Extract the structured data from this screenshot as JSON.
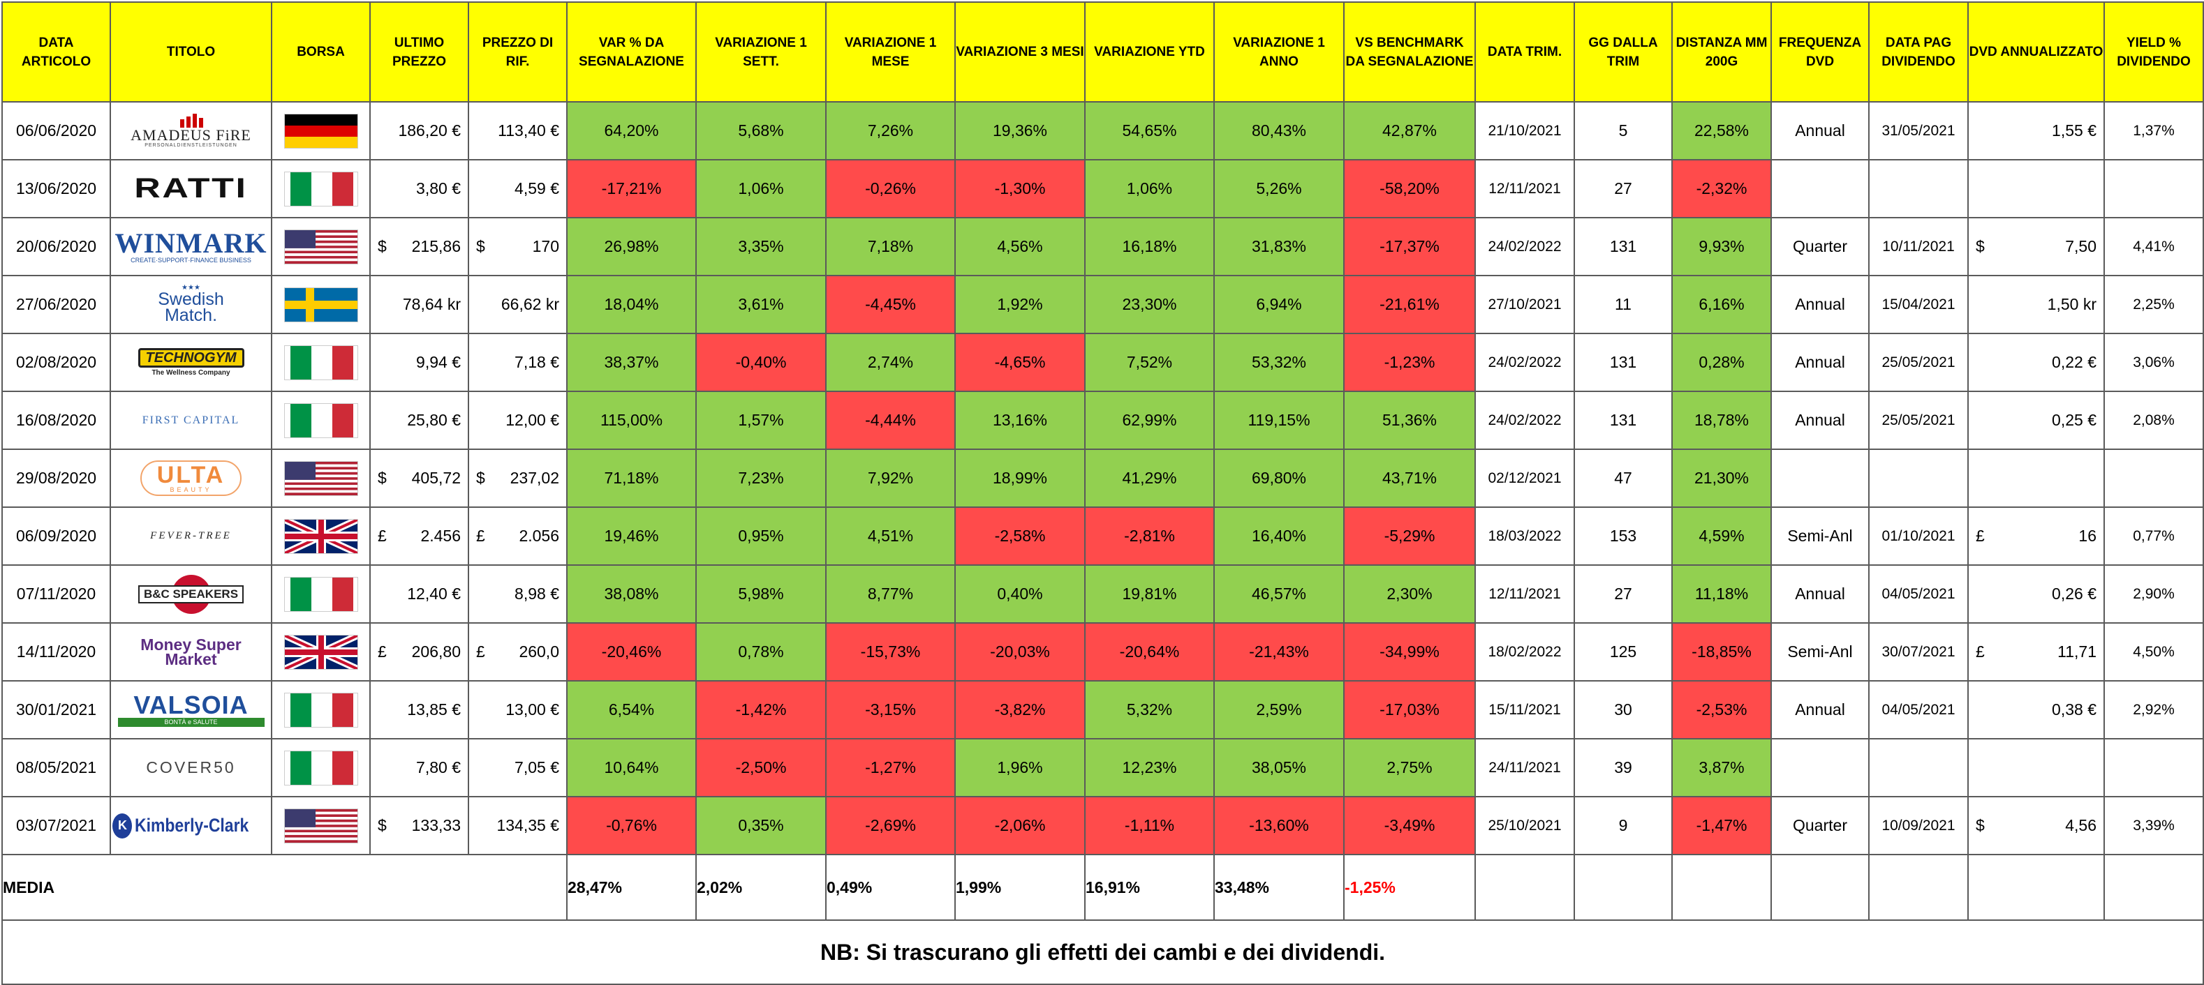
{
  "headers": {
    "data_articolo": "DATA ARTICOLO",
    "titolo": "TITOLO",
    "borsa": "BORSA",
    "ultimo_prezzo": "ULTIMO PREZZO",
    "prezzo_rif": "PREZZO DI RIF.",
    "var_segnalazione": "VAR % DA SEGNALAZIONE",
    "var_1_sett": "VARIAZIONE 1 SETT.",
    "var_1_mese": "VARIAZIONE 1 MESE",
    "var_3_mesi": "VARIAZIONE 3 MESI",
    "var_ytd": "VARIAZIONE YTD",
    "var_1_anno": "VARIAZIONE 1 ANNO",
    "vs_benchmark": "VS BENCHMARK DA SEGNALAZIONE",
    "data_trim": "DATA TRIM.",
    "gg_trim": "GG DALLA TRIM",
    "distanza_mm": "DISTANZA MM 200G",
    "frequenza_dvd": "FREQUENZA DVD",
    "data_pag_div": "DATA PAG DIVIDENDO",
    "dvd_annualizzato": "DVD ANNUALIZZATO",
    "yield_div": "YIELD % DIVIDENDO"
  },
  "colors": {
    "header": "#ffff00",
    "positive": "#92d050",
    "negative": "#ff4b4b"
  },
  "rows": [
    {
      "date": "06/06/2020",
      "logo_text": "AMADEUS FiRE",
      "logo_sub": "PERSONALDIENSTLEISTUNGEN",
      "logo": "amadeus",
      "flag": "de",
      "ultimo_cur": "",
      "ultimo": "186,20 €",
      "rif_cur": "",
      "rif": "113,40 €",
      "var": "64,20%",
      "s1": "5,68%",
      "m1": "7,26%",
      "m3": "19,36%",
      "ytd": "54,65%",
      "y1": "80,43%",
      "bench": "42,87%",
      "trim": "21/10/2021",
      "gg": "5",
      "mm": "22,58%",
      "freq": "Annual",
      "pag": "31/05/2021",
      "dvd_cur": "",
      "dvd": "1,55 €",
      "yield": "1,37%",
      "c": {
        "var": "g",
        "s1": "g",
        "m1": "g",
        "m3": "g",
        "ytd": "g",
        "y1": "g",
        "bench": "g",
        "mm": "g"
      }
    },
    {
      "date": "13/06/2020",
      "logo_text": "RATTI",
      "logo_sub": "",
      "logo": "ratti",
      "flag": "it",
      "ultimo_cur": "",
      "ultimo": "3,80 €",
      "rif_cur": "",
      "rif": "4,59 €",
      "var": "-17,21%",
      "s1": "1,06%",
      "m1": "-0,26%",
      "m3": "-1,30%",
      "ytd": "1,06%",
      "y1": "5,26%",
      "bench": "-58,20%",
      "trim": "12/11/2021",
      "gg": "27",
      "mm": "-2,32%",
      "freq": "",
      "pag": "",
      "dvd_cur": "",
      "dvd": "",
      "yield": "",
      "c": {
        "var": "r",
        "s1": "g",
        "m1": "r",
        "m3": "r",
        "ytd": "g",
        "y1": "g",
        "bench": "r",
        "mm": "r"
      }
    },
    {
      "date": "20/06/2020",
      "logo_text": "WINMARK",
      "logo_sub": "CREATE·SUPPORT·FINANCE BUSINESS",
      "logo": "winmark",
      "flag": "us",
      "ultimo_cur": "$",
      "ultimo": "215,86",
      "rif_cur": "$",
      "rif": "170",
      "var": "26,98%",
      "s1": "3,35%",
      "m1": "7,18%",
      "m3": "4,56%",
      "ytd": "16,18%",
      "y1": "31,83%",
      "bench": "-17,37%",
      "trim": "24/02/2022",
      "gg": "131",
      "mm": "9,93%",
      "freq": "Quarter",
      "pag": "10/11/2021",
      "dvd_cur": "$",
      "dvd": "7,50",
      "yield": "4,41%",
      "c": {
        "var": "g",
        "s1": "g",
        "m1": "g",
        "m3": "g",
        "ytd": "g",
        "y1": "g",
        "bench": "r",
        "mm": "g"
      }
    },
    {
      "date": "27/06/2020",
      "logo_text": "Swedish Match.",
      "logo_sub": "",
      "logo": "swedish",
      "flag": "se",
      "ultimo_cur": "",
      "ultimo": "78,64 kr",
      "rif_cur": "",
      "rif": "66,62 kr",
      "var": "18,04%",
      "s1": "3,61%",
      "m1": "-4,45%",
      "m3": "1,92%",
      "ytd": "23,30%",
      "y1": "6,94%",
      "bench": "-21,61%",
      "trim": "27/10/2021",
      "gg": "11",
      "mm": "6,16%",
      "freq": "Annual",
      "pag": "15/04/2021",
      "dvd_cur": "",
      "dvd": "1,50 kr",
      "yield": "2,25%",
      "c": {
        "var": "g",
        "s1": "g",
        "m1": "r",
        "m3": "g",
        "ytd": "g",
        "y1": "g",
        "bench": "r",
        "mm": "g"
      }
    },
    {
      "date": "02/08/2020",
      "logo_text": "TECHNOGYM",
      "logo_sub": "The Wellness Company",
      "logo": "technogym",
      "flag": "it",
      "ultimo_cur": "",
      "ultimo": "9,94 €",
      "rif_cur": "",
      "rif": "7,18 €",
      "var": "38,37%",
      "s1": "-0,40%",
      "m1": "2,74%",
      "m3": "-4,65%",
      "ytd": "7,52%",
      "y1": "53,32%",
      "bench": "-1,23%",
      "trim": "24/02/2022",
      "gg": "131",
      "mm": "0,28%",
      "freq": "Annual",
      "pag": "25/05/2021",
      "dvd_cur": "",
      "dvd": "0,22 €",
      "yield": "3,06%",
      "c": {
        "var": "g",
        "s1": "r",
        "m1": "g",
        "m3": "r",
        "ytd": "g",
        "y1": "g",
        "bench": "r",
        "mm": "g"
      }
    },
    {
      "date": "16/08/2020",
      "logo_text": "FIRST CAPITAL",
      "logo_sub": "",
      "logo": "firstcapital",
      "flag": "it",
      "ultimo_cur": "",
      "ultimo": "25,80 €",
      "rif_cur": "",
      "rif": "12,00 €",
      "var": "115,00%",
      "s1": "1,57%",
      "m1": "-4,44%",
      "m3": "13,16%",
      "ytd": "62,99%",
      "y1": "119,15%",
      "bench": "51,36%",
      "trim": "24/02/2022",
      "gg": "131",
      "mm": "18,78%",
      "freq": "Annual",
      "pag": "25/05/2021",
      "dvd_cur": "",
      "dvd": "0,25 €",
      "yield": "2,08%",
      "c": {
        "var": "g",
        "s1": "g",
        "m1": "r",
        "m3": "g",
        "ytd": "g",
        "y1": "g",
        "bench": "g",
        "mm": "g"
      }
    },
    {
      "date": "29/08/2020",
      "logo_text": "ULTA",
      "logo_sub": "BEAUTY",
      "logo": "ulta",
      "flag": "us",
      "ultimo_cur": "$",
      "ultimo": "405,72",
      "rif_cur": "$",
      "rif": "237,02",
      "var": "71,18%",
      "s1": "7,23%",
      "m1": "7,92%",
      "m3": "18,99%",
      "ytd": "41,29%",
      "y1": "69,80%",
      "bench": "43,71%",
      "trim": "02/12/2021",
      "gg": "47",
      "mm": "21,30%",
      "freq": "",
      "pag": "",
      "dvd_cur": "",
      "dvd": "",
      "yield": "",
      "c": {
        "var": "g",
        "s1": "g",
        "m1": "g",
        "m3": "g",
        "ytd": "g",
        "y1": "g",
        "bench": "g",
        "mm": "g"
      }
    },
    {
      "date": "06/09/2020",
      "logo_text": "FEVER-TREE",
      "logo_sub": "",
      "logo": "fevertree",
      "flag": "uk",
      "ultimo_cur": "£",
      "ultimo": "2.456",
      "rif_cur": "£",
      "rif": "2.056",
      "var": "19,46%",
      "s1": "0,95%",
      "m1": "4,51%",
      "m3": "-2,58%",
      "ytd": "-2,81%",
      "y1": "16,40%",
      "bench": "-5,29%",
      "trim": "18/03/2022",
      "gg": "153",
      "mm": "4,59%",
      "freq": "Semi-Anl",
      "pag": "01/10/2021",
      "dvd_cur": "£",
      "dvd": "16",
      "yield": "0,77%",
      "c": {
        "var": "g",
        "s1": "g",
        "m1": "g",
        "m3": "r",
        "ytd": "r",
        "y1": "g",
        "bench": "r",
        "mm": "g"
      }
    },
    {
      "date": "07/11/2020",
      "logo_text": "B&C SPEAKERS",
      "logo_sub": "",
      "logo": "bc",
      "flag": "it",
      "ultimo_cur": "",
      "ultimo": "12,40 €",
      "rif_cur": "",
      "rif": "8,98 €",
      "var": "38,08%",
      "s1": "5,98%",
      "m1": "8,77%",
      "m3": "0,40%",
      "ytd": "19,81%",
      "y1": "46,57%",
      "bench": "2,30%",
      "trim": "12/11/2021",
      "gg": "27",
      "mm": "11,18%",
      "freq": "Annual",
      "pag": "04/05/2021",
      "dvd_cur": "",
      "dvd": "0,26 €",
      "yield": "2,90%",
      "c": {
        "var": "g",
        "s1": "g",
        "m1": "g",
        "m3": "g",
        "ytd": "g",
        "y1": "g",
        "bench": "g",
        "mm": "g"
      }
    },
    {
      "date": "14/11/2020",
      "logo_text": "Money Super Market",
      "logo_sub": "",
      "logo": "money",
      "flag": "uk",
      "ultimo_cur": "£",
      "ultimo": "206,80",
      "rif_cur": "£",
      "rif": "260,0",
      "var": "-20,46%",
      "s1": "0,78%",
      "m1": "-15,73%",
      "m3": "-20,03%",
      "ytd": "-20,64%",
      "y1": "-21,43%",
      "bench": "-34,99%",
      "trim": "18/02/2022",
      "gg": "125",
      "mm": "-18,85%",
      "freq": "Semi-Anl",
      "pag": "30/07/2021",
      "dvd_cur": "£",
      "dvd": "11,71",
      "yield": "4,50%",
      "c": {
        "var": "r",
        "s1": "g",
        "m1": "r",
        "m3": "r",
        "ytd": "r",
        "y1": "r",
        "bench": "r",
        "mm": "r"
      }
    },
    {
      "date": "30/01/2021",
      "logo_text": "VALSOIA",
      "logo_sub": "BONTÀ e SALUTE",
      "logo": "valsoia",
      "flag": "it",
      "ultimo_cur": "",
      "ultimo": "13,85 €",
      "rif_cur": "",
      "rif": "13,00 €",
      "var": "6,54%",
      "s1": "-1,42%",
      "m1": "-3,15%",
      "m3": "-3,82%",
      "ytd": "5,32%",
      "y1": "2,59%",
      "bench": "-17,03%",
      "trim": "15/11/2021",
      "gg": "30",
      "mm": "-2,53%",
      "freq": "Annual",
      "pag": "04/05/2021",
      "dvd_cur": "",
      "dvd": "0,38 €",
      "yield": "2,92%",
      "c": {
        "var": "g",
        "s1": "r",
        "m1": "r",
        "m3": "r",
        "ytd": "g",
        "y1": "g",
        "bench": "r",
        "mm": "r"
      }
    },
    {
      "date": "08/05/2021",
      "logo_text": "COVER50",
      "logo_sub": "",
      "logo": "cover50",
      "flag": "it",
      "ultimo_cur": "",
      "ultimo": "7,80 €",
      "rif_cur": "",
      "rif": "7,05 €",
      "var": "10,64%",
      "s1": "-2,50%",
      "m1": "-1,27%",
      "m3": "1,96%",
      "ytd": "12,23%",
      "y1": "38,05%",
      "bench": "2,75%",
      "trim": "24/11/2021",
      "gg": "39",
      "mm": "3,87%",
      "freq": "",
      "pag": "",
      "dvd_cur": "",
      "dvd": "",
      "yield": "",
      "c": {
        "var": "g",
        "s1": "r",
        "m1": "r",
        "m3": "g",
        "ytd": "g",
        "y1": "g",
        "bench": "g",
        "mm": "g"
      }
    },
    {
      "date": "03/07/2021",
      "logo_text": "Kimberly-Clark",
      "logo_sub": "",
      "logo": "kimberly",
      "flag": "us",
      "ultimo_cur": "$",
      "ultimo": "133,33",
      "rif_cur": "",
      "rif": "134,35 €",
      "var": "-0,76%",
      "s1": "0,35%",
      "m1": "-2,69%",
      "m3": "-2,06%",
      "ytd": "-1,11%",
      "y1": "-13,60%",
      "bench": "-3,49%",
      "trim": "25/10/2021",
      "gg": "9",
      "mm": "-1,47%",
      "freq": "Quarter",
      "pag": "10/09/2021",
      "dvd_cur": "$",
      "dvd": "4,56",
      "yield": "3,39%",
      "c": {
        "var": "r",
        "s1": "g",
        "m1": "r",
        "m3": "r",
        "ytd": "r",
        "y1": "r",
        "bench": "r",
        "mm": "r"
      }
    }
  ],
  "average": {
    "label": "MEDIA",
    "var": "28,47%",
    "s1": "2,02%",
    "m1": "0,49%",
    "m3": "1,99%",
    "ytd": "16,91%",
    "y1": "33,48%",
    "bench": "-1,25%"
  },
  "note": "NB: Si trascurano gli effetti dei cambi e dei dividendi."
}
